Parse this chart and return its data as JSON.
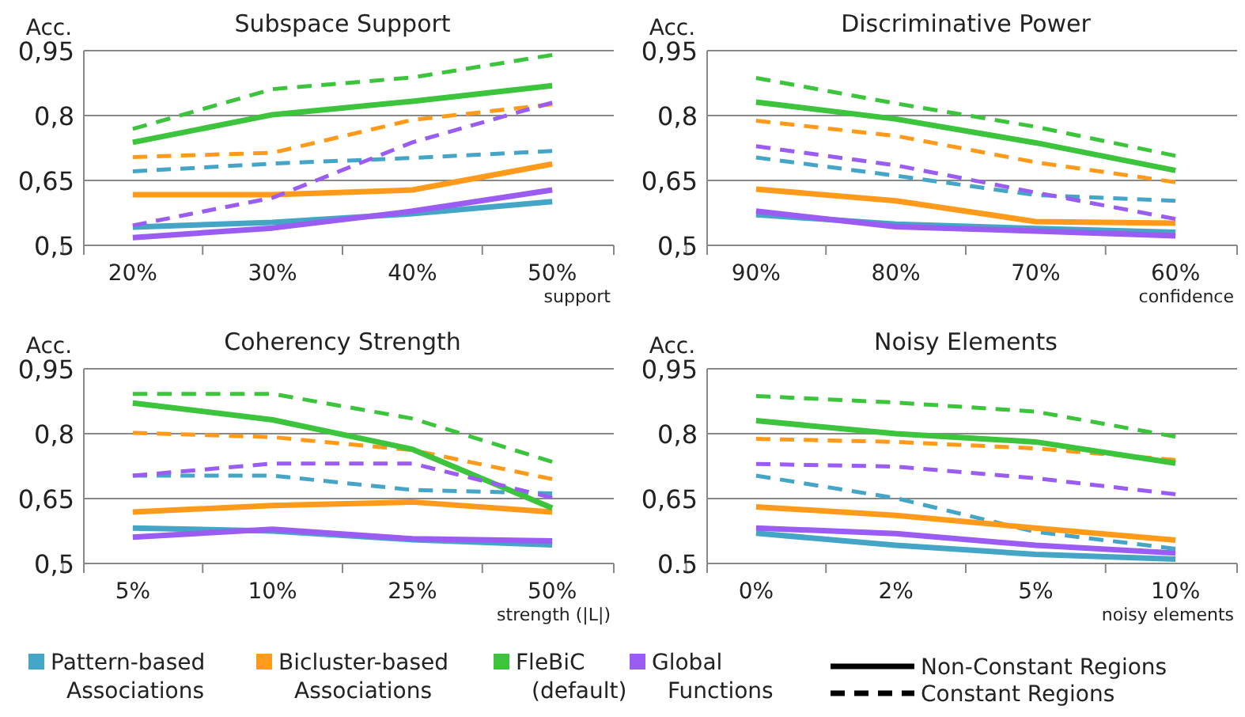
{
  "chart_data": [
    {
      "type": "line",
      "title": "Subspace Support",
      "ylabel": "Acc.",
      "xlabel": "support",
      "categories": [
        "20%",
        "30%",
        "40%",
        "50%"
      ],
      "ylim": [
        0.5,
        0.95
      ],
      "yticks": [
        {
          "value": 0.5,
          "label": "0,5"
        },
        {
          "value": 0.65,
          "label": "0,65"
        },
        {
          "value": 0.8,
          "label": "0,8"
        },
        {
          "value": 0.95,
          "label": "0,95"
        }
      ],
      "grid": "y",
      "legend": "bottom",
      "marker": "none",
      "annotations": [
        "Non-Constant Regions",
        "Constant Regions"
      ],
      "series": [
        {
          "name": "Pattern-based Associations",
          "color": "#45a5c6",
          "line_style": "solid",
          "values": [
            0.542,
            0.553,
            0.573,
            0.601
          ]
        },
        {
          "color": "#45a5c6",
          "line_style": "dashed",
          "values": [
            0.671,
            0.689,
            0.702,
            0.718
          ]
        },
        {
          "name": "Bicluster-based Associations",
          "color": "#ff9a1a",
          "line_style": "solid",
          "values": [
            0.617,
            0.617,
            0.628,
            0.688
          ]
        },
        {
          "color": "#ff9a1a",
          "line_style": "dashed",
          "values": [
            0.704,
            0.714,
            0.79,
            0.826
          ]
        },
        {
          "name": "FleBiC (default)",
          "color": "#3cc43c",
          "line_style": "solid",
          "values": [
            0.738,
            0.802,
            0.833,
            0.869
          ]
        },
        {
          "color": "#3cc43c",
          "line_style": "dashed",
          "values": [
            0.769,
            0.861,
            0.888,
            0.94
          ]
        },
        {
          "name": "Global Functions",
          "color": "#9a5cf2",
          "line_style": "solid",
          "values": [
            0.518,
            0.54,
            0.579,
            0.628
          ]
        },
        {
          "color": "#9a5cf2",
          "line_style": "dashed",
          "values": [
            0.546,
            0.61,
            0.738,
            0.83
          ]
        }
      ]
    },
    {
      "type": "line",
      "title": "Discriminative Power",
      "ylabel": "Acc.",
      "xlabel": "confidence",
      "categories": [
        "90%",
        "80%",
        "70%",
        "60%"
      ],
      "ylim": [
        0.5,
        0.95
      ],
      "yticks": [
        {
          "value": 0.5,
          "label": "0,5"
        },
        {
          "value": 0.65,
          "label": "0,65"
        },
        {
          "value": 0.8,
          "label": "0,8"
        },
        {
          "value": 0.95,
          "label": "0,95"
        }
      ],
      "grid": "y",
      "legend": "bottom",
      "marker": "none",
      "series": [
        {
          "name": "Pattern-based Associations",
          "color": "#45a5c6",
          "line_style": "solid",
          "values": [
            0.571,
            0.549,
            0.539,
            0.53
          ]
        },
        {
          "color": "#45a5c6",
          "line_style": "dashed",
          "values": [
            0.703,
            0.661,
            0.616,
            0.603
          ]
        },
        {
          "name": "Bicluster-based Associations",
          "color": "#ff9a1a",
          "line_style": "solid",
          "values": [
            0.63,
            0.603,
            0.555,
            0.551
          ]
        },
        {
          "color": "#ff9a1a",
          "line_style": "dashed",
          "values": [
            0.788,
            0.753,
            0.692,
            0.646
          ]
        },
        {
          "name": "FleBiC (default)",
          "color": "#3cc43c",
          "line_style": "solid",
          "values": [
            0.831,
            0.792,
            0.737,
            0.673
          ]
        },
        {
          "color": "#3cc43c",
          "line_style": "dashed",
          "values": [
            0.887,
            0.828,
            0.774,
            0.707
          ]
        },
        {
          "name": "Global Functions",
          "color": "#9a5cf2",
          "line_style": "solid",
          "values": [
            0.579,
            0.543,
            0.533,
            0.522
          ]
        },
        {
          "color": "#9a5cf2",
          "line_style": "dashed",
          "values": [
            0.729,
            0.685,
            0.622,
            0.561
          ]
        }
      ]
    },
    {
      "type": "line",
      "title": "Coherency Strength",
      "ylabel": "Acc.",
      "xlabel": "strength (|L|)",
      "categories": [
        "5%",
        "10%",
        "25%",
        "50%"
      ],
      "ylim": [
        0.5,
        0.95
      ],
      "yticks": [
        {
          "value": 0.5,
          "label": "0,5"
        },
        {
          "value": 0.65,
          "label": "0,65"
        },
        {
          "value": 0.8,
          "label": "0,8"
        },
        {
          "value": 0.95,
          "label": "0,95"
        }
      ],
      "grid": "y",
      "legend": "bottom",
      "marker": "none",
      "series": [
        {
          "name": "Pattern-based Associations",
          "color": "#45a5c6",
          "line_style": "solid",
          "values": [
            0.582,
            0.575,
            0.555,
            0.543
          ]
        },
        {
          "color": "#45a5c6",
          "line_style": "dashed",
          "values": [
            0.703,
            0.703,
            0.67,
            0.662
          ]
        },
        {
          "name": "Bicluster-based Associations",
          "color": "#ff9a1a",
          "line_style": "solid",
          "values": [
            0.619,
            0.634,
            0.642,
            0.619
          ]
        },
        {
          "color": "#ff9a1a",
          "line_style": "dashed",
          "values": [
            0.802,
            0.792,
            0.762,
            0.695
          ]
        },
        {
          "name": "FleBiC (default)",
          "color": "#3cc43c",
          "line_style": "solid",
          "values": [
            0.871,
            0.832,
            0.764,
            0.628
          ]
        },
        {
          "color": "#3cc43c",
          "line_style": "dashed",
          "values": [
            0.892,
            0.892,
            0.835,
            0.735
          ]
        },
        {
          "name": "Global Functions",
          "color": "#9a5cf2",
          "line_style": "solid",
          "values": [
            0.561,
            0.579,
            0.557,
            0.552
          ]
        },
        {
          "color": "#9a5cf2",
          "line_style": "dashed",
          "values": [
            0.703,
            0.731,
            0.731,
            0.652
          ]
        }
      ]
    },
    {
      "type": "line",
      "title": "Noisy Elements",
      "ylabel": "Acc.",
      "xlabel": "noisy elements",
      "categories": [
        "0%",
        "2%",
        "5%",
        "10%"
      ],
      "ylim": [
        0.5,
        0.95
      ],
      "yticks": [
        {
          "value": 0.5,
          "label": "0.5"
        },
        {
          "value": 0.65,
          "label": "0,65"
        },
        {
          "value": 0.8,
          "label": "0,8"
        },
        {
          "value": 0.95,
          "label": "0,95"
        }
      ],
      "grid": "y",
      "legend": "bottom",
      "marker": "none",
      "series": [
        {
          "name": "Pattern-based Associations",
          "color": "#45a5c6",
          "line_style": "solid",
          "values": [
            0.57,
            0.542,
            0.521,
            0.51
          ]
        },
        {
          "color": "#45a5c6",
          "line_style": "dashed",
          "values": [
            0.703,
            0.651,
            0.573,
            0.534
          ]
        },
        {
          "name": "Bicluster-based Associations",
          "color": "#ff9a1a",
          "line_style": "solid",
          "values": [
            0.631,
            0.611,
            0.582,
            0.554
          ]
        },
        {
          "color": "#ff9a1a",
          "line_style": "dashed",
          "values": [
            0.788,
            0.781,
            0.766,
            0.739
          ]
        },
        {
          "name": "FleBiC (default)",
          "color": "#3cc43c",
          "line_style": "solid",
          "values": [
            0.83,
            0.8,
            0.781,
            0.732
          ]
        },
        {
          "color": "#3cc43c",
          "line_style": "dashed",
          "values": [
            0.887,
            0.872,
            0.851,
            0.793
          ]
        },
        {
          "name": "Global Functions",
          "color": "#9a5cf2",
          "line_style": "solid",
          "values": [
            0.582,
            0.569,
            0.542,
            0.524
          ]
        },
        {
          "color": "#9a5cf2",
          "line_style": "dashed",
          "values": [
            0.73,
            0.724,
            0.697,
            0.66
          ]
        }
      ]
    }
  ]
}
